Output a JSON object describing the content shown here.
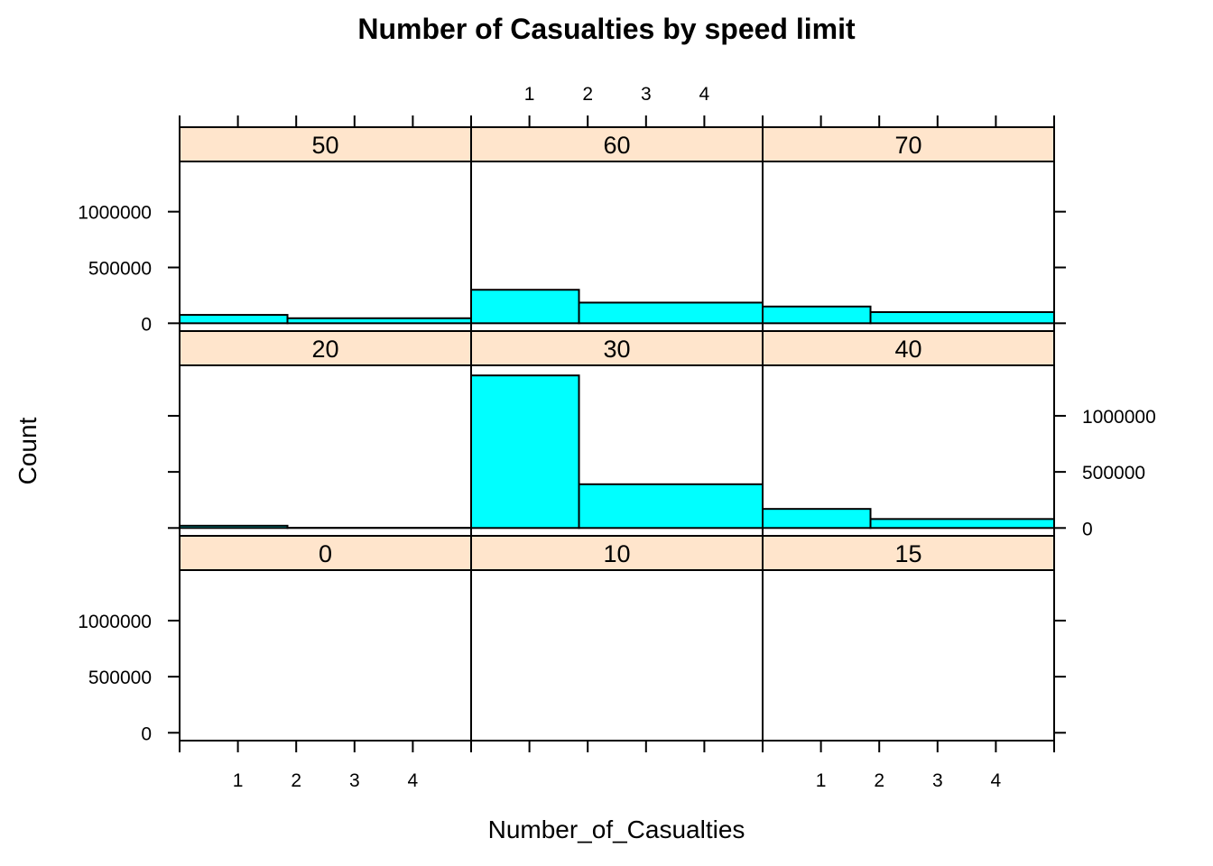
{
  "chart_data": {
    "type": "bar",
    "title": "Number of Casualties by speed limit",
    "xlabel": "Number_of_Casualties",
    "ylabel": "Count",
    "x_ticks": [
      1,
      2,
      3,
      4
    ],
    "y_ticks": [
      0,
      500000,
      1000000
    ],
    "xlim": [
      0.0,
      5.0
    ],
    "ylim": [
      -70000,
      1450000
    ],
    "bins": [
      [
        0.0,
        1.85
      ],
      [
        1.85,
        5.0
      ]
    ],
    "layout": "3 columns x 3 rows, panels ordered bottom-left to top-right",
    "panels": [
      {
        "speed_limit": "0",
        "values": [
          0,
          0
        ]
      },
      {
        "speed_limit": "10",
        "values": [
          0,
          0
        ]
      },
      {
        "speed_limit": "15",
        "values": [
          0,
          0
        ]
      },
      {
        "speed_limit": "20",
        "values": [
          20000,
          2000
        ]
      },
      {
        "speed_limit": "30",
        "values": [
          1360000,
          390000
        ]
      },
      {
        "speed_limit": "40",
        "values": [
          170000,
          80000
        ]
      },
      {
        "speed_limit": "50",
        "values": [
          75000,
          45000
        ]
      },
      {
        "speed_limit": "60",
        "values": [
          300000,
          185000
        ]
      },
      {
        "speed_limit": "70",
        "values": [
          150000,
          100000
        ]
      }
    ],
    "colors": {
      "bar": "#00ffff",
      "strip": "#ffe5cc"
    },
    "grid": false,
    "legend": "none"
  }
}
